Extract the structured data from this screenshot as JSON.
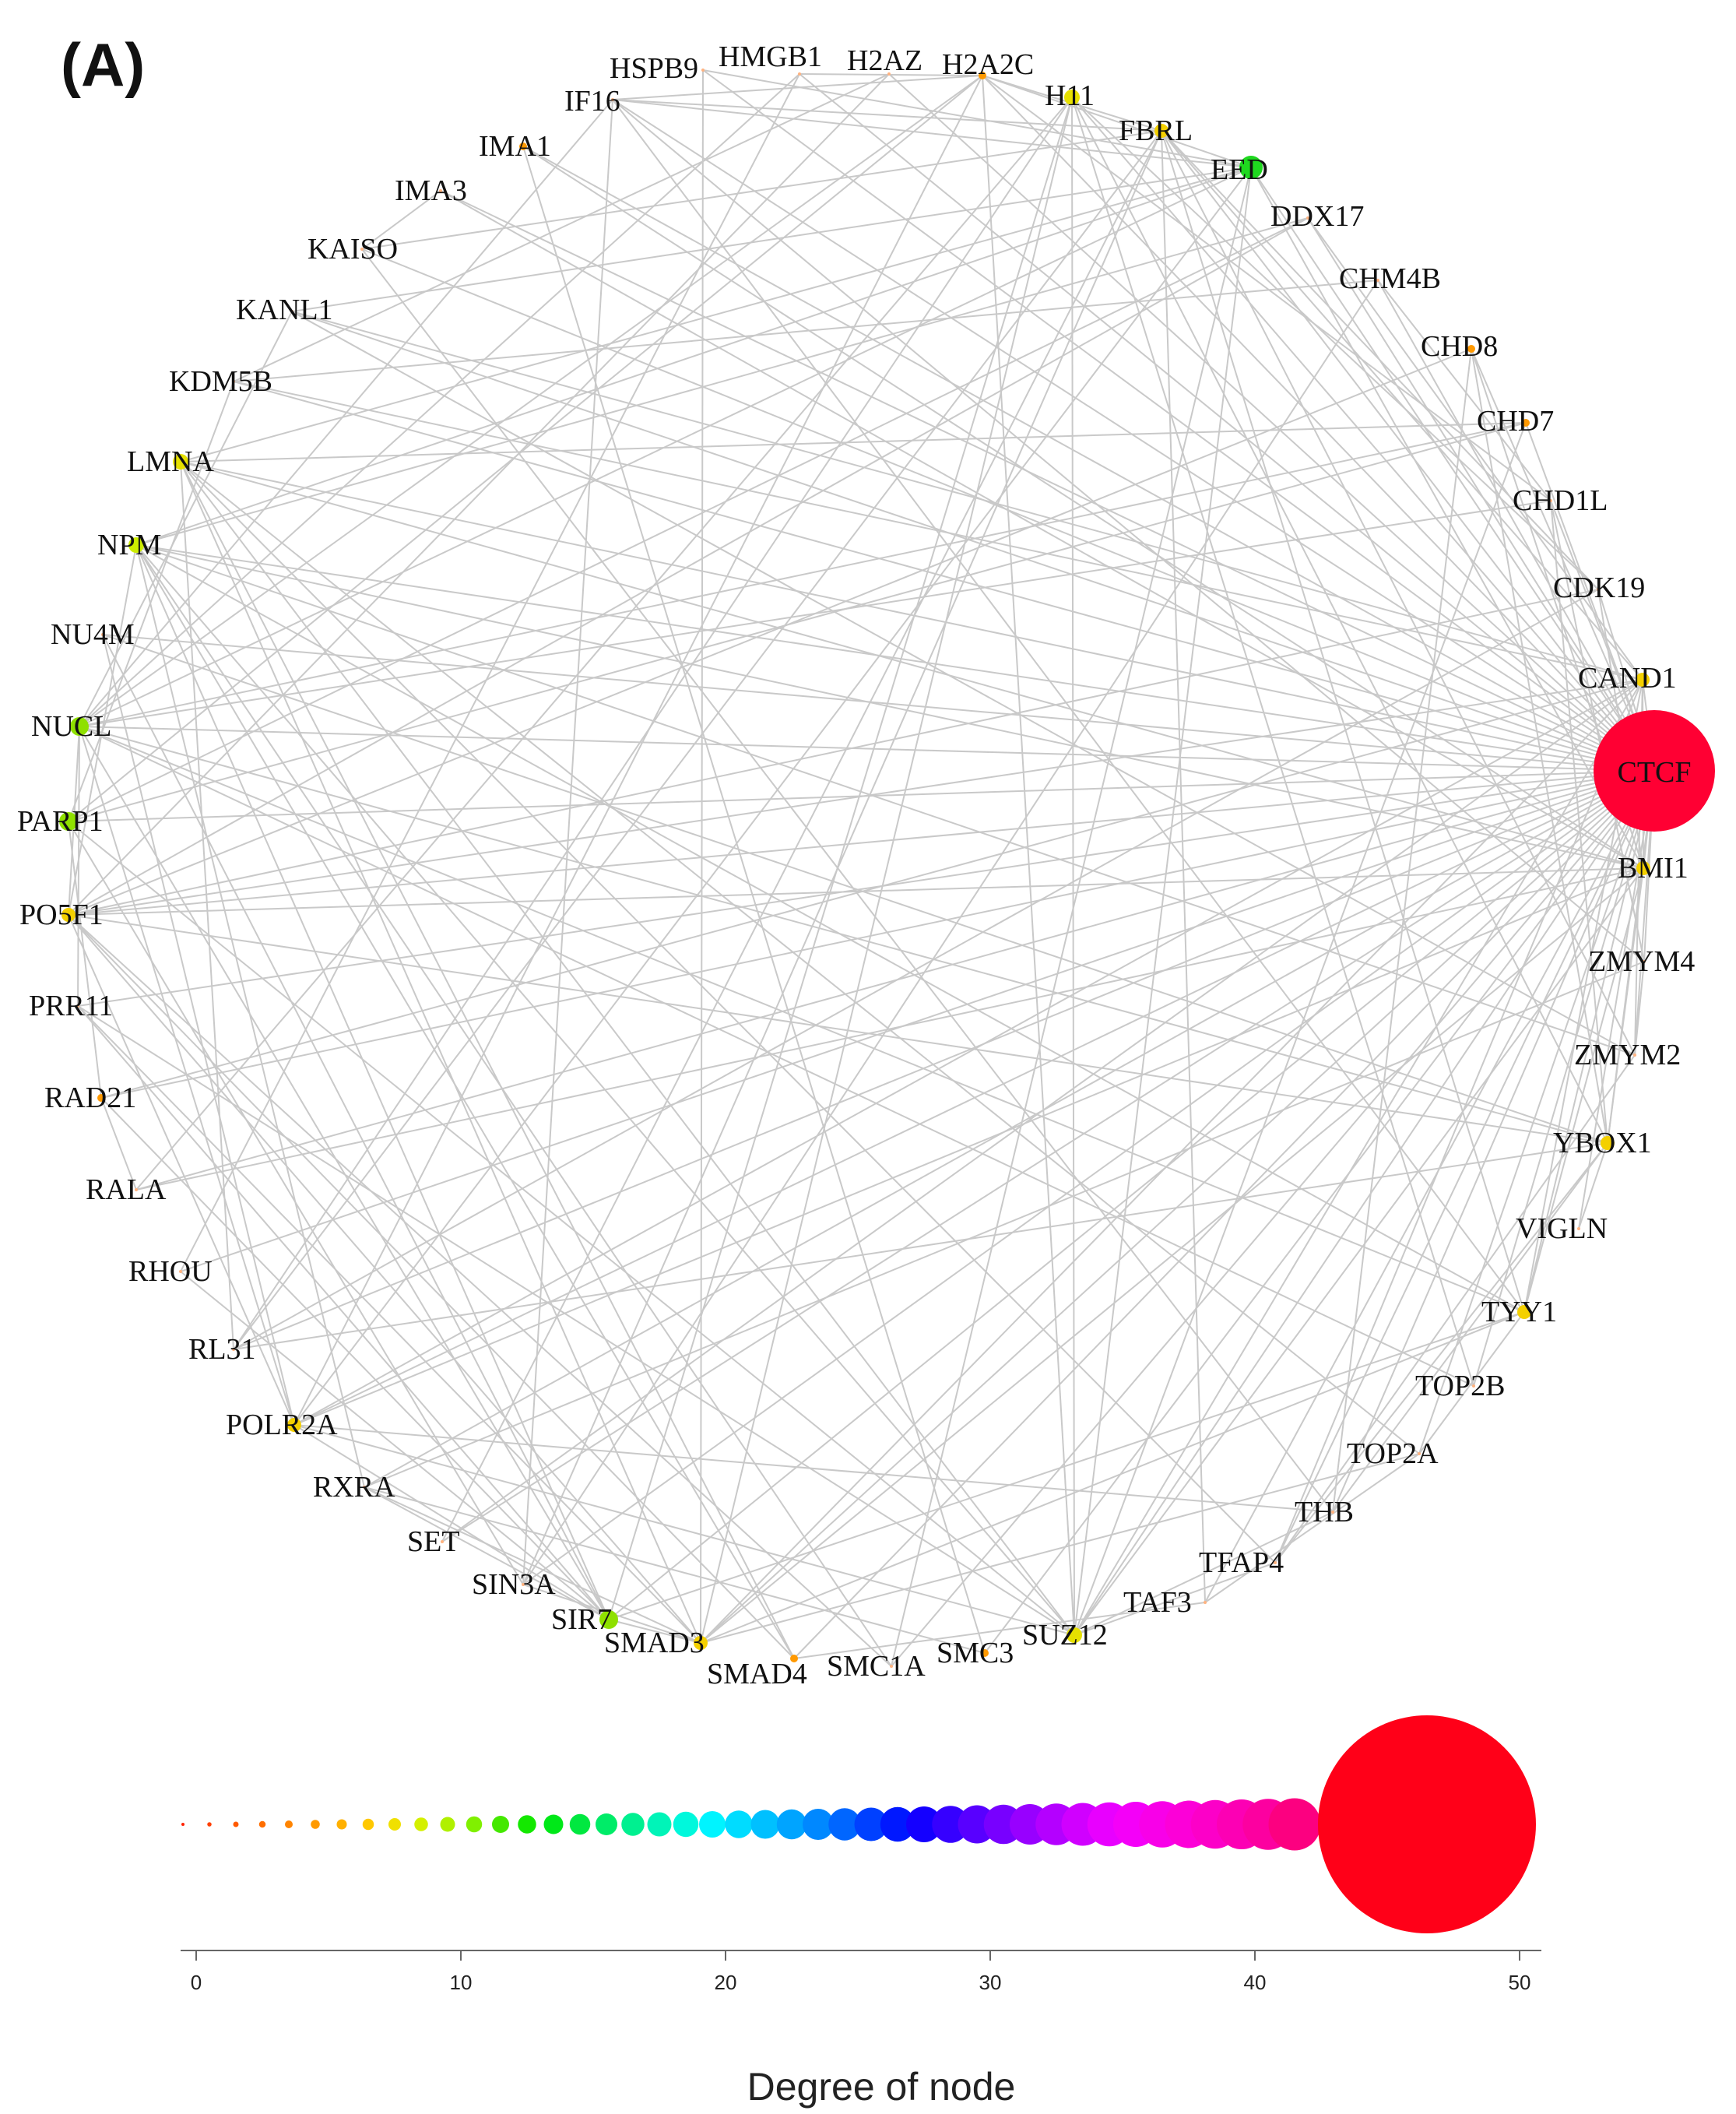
{
  "panel_label": "(A)",
  "network": {
    "hub": "CTCF",
    "nodes": [
      {
        "id": "HSPB9",
        "degree": 1
      },
      {
        "id": "HMGB1",
        "degree": 1
      },
      {
        "id": "H2AZ",
        "degree": 1
      },
      {
        "id": "H2A2C",
        "degree": 3
      },
      {
        "id": "H11",
        "degree": 7
      },
      {
        "id": "FBRL",
        "degree": 6
      },
      {
        "id": "EED",
        "degree": 14
      },
      {
        "id": "DDX17",
        "degree": 1
      },
      {
        "id": "CHM4B",
        "degree": 1
      },
      {
        "id": "CHD8",
        "degree": 3
      },
      {
        "id": "CHD7",
        "degree": 3
      },
      {
        "id": "CHD1L",
        "degree": 1
      },
      {
        "id": "CDK19",
        "degree": 1
      },
      {
        "id": "CAND1",
        "degree": 6
      },
      {
        "id": "CTCF",
        "degree": 46
      },
      {
        "id": "BMI1",
        "degree": 6
      },
      {
        "id": "ZMYM4",
        "degree": 1
      },
      {
        "id": "ZMYM2",
        "degree": 1
      },
      {
        "id": "YBOX1",
        "degree": 6
      },
      {
        "id": "VIGLN",
        "degree": 1
      },
      {
        "id": "TYY1",
        "degree": 6
      },
      {
        "id": "TOP2B",
        "degree": 1
      },
      {
        "id": "TOP2A",
        "degree": 1
      },
      {
        "id": "THB",
        "degree": 1
      },
      {
        "id": "TFAP4",
        "degree": 1
      },
      {
        "id": "TAF3",
        "degree": 1
      },
      {
        "id": "SUZ12",
        "degree": 7
      },
      {
        "id": "SMC3",
        "degree": 3
      },
      {
        "id": "SMC1A",
        "degree": 1
      },
      {
        "id": "SMAD4",
        "degree": 3
      },
      {
        "id": "SMAD3",
        "degree": 6
      },
      {
        "id": "SIR7",
        "degree": 10
      },
      {
        "id": "SIN3A",
        "degree": 1
      },
      {
        "id": "SET",
        "degree": 1
      },
      {
        "id": "RXRA",
        "degree": 1
      },
      {
        "id": "POLR2A",
        "degree": 6
      },
      {
        "id": "RL31",
        "degree": 1
      },
      {
        "id": "RHOU",
        "degree": 1
      },
      {
        "id": "RALA",
        "degree": 1
      },
      {
        "id": "RAD21",
        "degree": 3
      },
      {
        "id": "PRR11",
        "degree": 1
      },
      {
        "id": "PO5F1",
        "degree": 6
      },
      {
        "id": "PARP1",
        "degree": 10
      },
      {
        "id": "NUCL",
        "degree": 11
      },
      {
        "id": "NU4M",
        "degree": 1
      },
      {
        "id": "NPM",
        "degree": 8
      },
      {
        "id": "LMNA",
        "degree": 7
      },
      {
        "id": "KDM5B",
        "degree": 1
      },
      {
        "id": "KANL1",
        "degree": 1
      },
      {
        "id": "KAISO",
        "degree": 1
      },
      {
        "id": "IMA3",
        "degree": 1
      },
      {
        "id": "IMA1",
        "degree": 3
      },
      {
        "id": "IF16",
        "degree": 1
      }
    ]
  },
  "chart_data": {
    "type": "scatter",
    "title": "",
    "xlabel": "Degree of node",
    "ylabel": "",
    "xlim": [
      0,
      51
    ],
    "xticks": [
      0,
      10,
      20,
      30,
      40,
      50
    ],
    "legend": "degree scale: node size and color increase with degree",
    "x": [
      -0.5,
      0.5,
      1.5,
      2.5,
      3.5,
      4.5,
      5.5,
      6.5,
      7.5,
      8.5,
      9.5,
      10.5,
      11.5,
      12.5,
      13.5,
      14.5,
      15.5,
      16.5,
      17.5,
      18.5,
      19.5,
      20.5,
      21.5,
      22.5,
      23.5,
      24.5,
      25.5,
      26.5,
      27.5,
      28.5,
      29.5,
      30.5,
      31.5,
      32.5,
      33.5,
      34.5,
      35.5,
      36.5,
      37.5,
      38.5,
      39.5,
      40.5,
      41.5,
      46.5
    ],
    "colors": [
      "#ff2200",
      "#ff4000",
      "#ff5a00",
      "#ff6e00",
      "#ff8400",
      "#ff9a00",
      "#ffb000",
      "#ffc800",
      "#f0e000",
      "#d4f000",
      "#b0f000",
      "#80f000",
      "#44e800",
      "#14e800",
      "#00e818",
      "#00e840",
      "#00ec68",
      "#00f090",
      "#00f4b8",
      "#00f8dc",
      "#00f4ff",
      "#00dcff",
      "#00c0ff",
      "#00a4ff",
      "#0088ff",
      "#0066ff",
      "#0040ff",
      "#0018ff",
      "#1400ff",
      "#3600ff",
      "#5800ff",
      "#7800ff",
      "#9800ff",
      "#b400ff",
      "#d000ff",
      "#e800ff",
      "#f400f8",
      "#f800e8",
      "#fc00d8",
      "#fc00c8",
      "#fc00b4",
      "#fc00a0",
      "#fc0080",
      "#ff0018"
    ]
  },
  "colors": {
    "edge": "#c9c9c9",
    "hub": "#ff0033"
  }
}
